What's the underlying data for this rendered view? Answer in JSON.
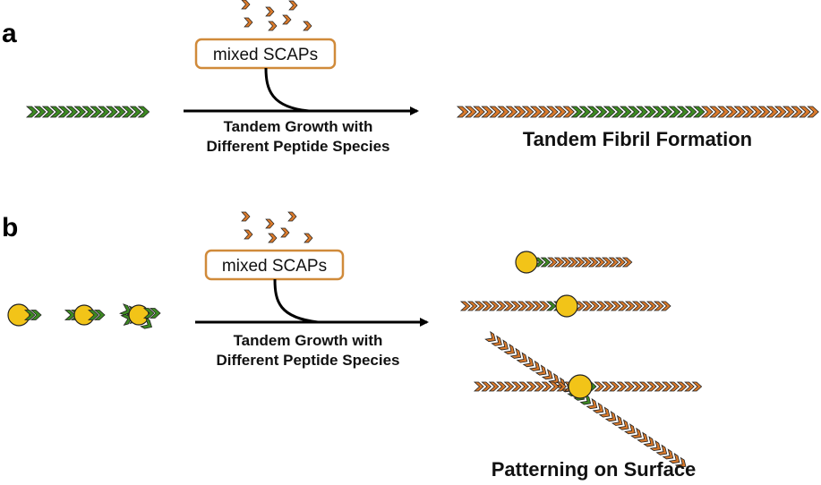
{
  "panels": [
    {
      "letter": "a",
      "box_label": "mixed SCAPs",
      "arrow_label_line1": "Tandem Growth with",
      "arrow_label_line2": "Different Peptide Species",
      "result_label": "Tandem Fibril Formation"
    },
    {
      "letter": "b",
      "box_label": "mixed SCAPs",
      "arrow_label_line1": "Tandem Growth with",
      "arrow_label_line2": "Different Peptide Species",
      "result_label": "Patterning on Surface"
    }
  ],
  "colors": {
    "green": "#3d8a22",
    "orange": "#d97a2c",
    "gold": "#f2c418",
    "box_border": "#d08a3a",
    "stroke": "#222222"
  }
}
